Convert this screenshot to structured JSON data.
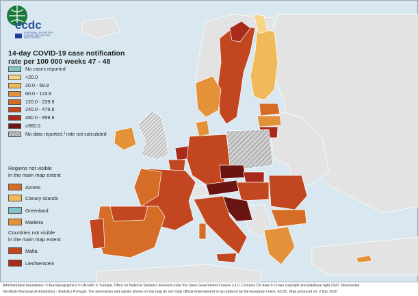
{
  "logo": {
    "wordmark": "ecdc",
    "org_line1": "EUROPEAN CENTRE FOR",
    "org_line2": "DISEASE PREVENTION",
    "org_line3": "AND CONTROL"
  },
  "title_line1": "14-day COVID-19 case notification",
  "title_line2": "rate per 100 000 weeks 47 - 48",
  "legend": [
    {
      "label": "No cases reported",
      "color": "#7fc3c9"
    },
    {
      "label": "<20.0",
      "color": "#f5d58a"
    },
    {
      "label": "20.0 - 59.9",
      "color": "#f0b959"
    },
    {
      "label": "60.0 - 119.9",
      "color": "#e4923a"
    },
    {
      "label": "120.0 - 239.9",
      "color": "#d56d27"
    },
    {
      "label": "240.0 - 479.9",
      "color": "#c2461f"
    },
    {
      "label": "480.0 - 959.9",
      "color": "#a72a1b"
    },
    {
      "label": "≥960.0",
      "color": "#6b1512"
    },
    {
      "label": "No data reported / rate not calculated",
      "color": "hatched"
    }
  ],
  "regions_heading_line1": "Regions not visible",
  "regions_heading_line2": "in the main map extent",
  "regions": [
    {
      "label": "Azores",
      "color": "#d56d27"
    },
    {
      "label": "Canary Islands",
      "color": "#f0b959"
    },
    {
      "label": "Greenland",
      "color": "#7fc3c9"
    },
    {
      "label": "Madeira",
      "color": "#e4923a"
    }
  ],
  "countries_heading_line1": "Countries not visible",
  "countries_heading_line2": "in the main map extent",
  "countries": [
    {
      "label": "Malta",
      "color": "#c2461f"
    },
    {
      "label": "Liechtenstein",
      "color": "#a72a1b"
    }
  ],
  "footer_line1": "Administrative boundaries: © EuroGeographics © UN-FAO © Turkstat. Office for National Statistics licensed under the Open Government Licence v.3.0. Contains OS data © Crown copyright and database right 2020. ©Kartverket",
  "footer_line2": "©Instituto Nacional de Estatística - Statistics Portugal. The boundaries and names shown on this map do not imply official endorsement or acceptance by the European Union. ECDC. Map produced on: 2 Dec 2020",
  "colors": {
    "sea": "#d9e8f0",
    "non_eu_land": "#e3e3e3",
    "border": "#ffffff"
  }
}
